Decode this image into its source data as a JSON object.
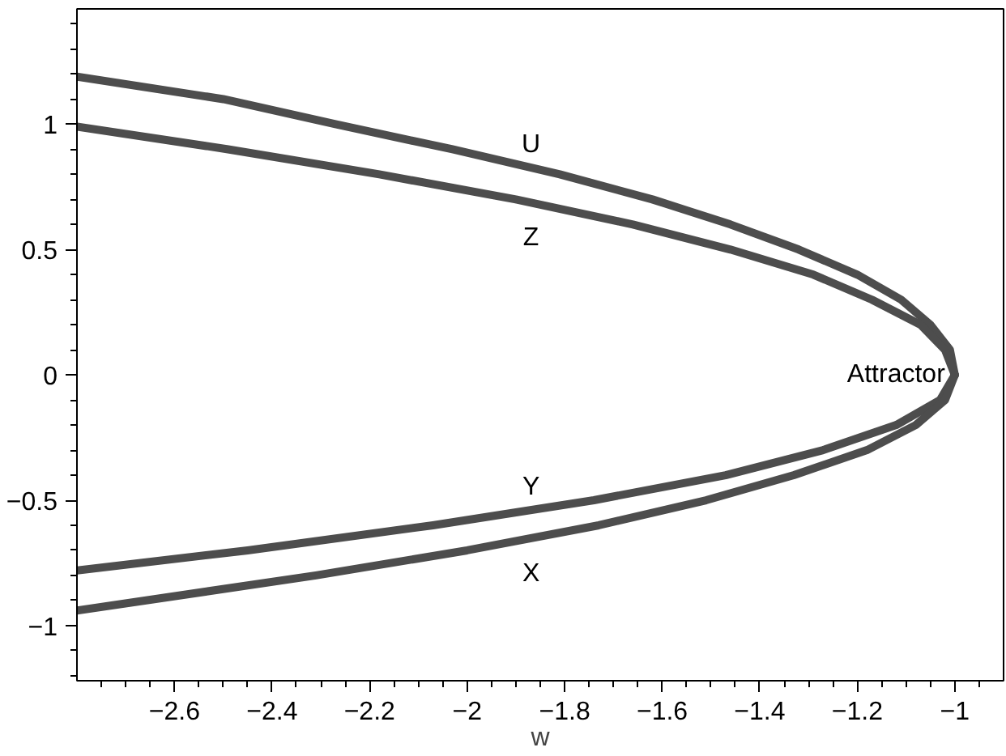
{
  "chart_data": {
    "type": "line",
    "xlabel": "w",
    "xlim": [
      -2.8,
      -0.9
    ],
    "ylim": [
      -1.22,
      1.46
    ],
    "xticks": [
      -2.6,
      -2.4,
      -2.2,
      -2,
      -1.8,
      -1.6,
      -1.4,
      -1.2,
      -1
    ],
    "yticks": [
      -1,
      -0.5,
      0,
      0.5,
      1
    ],
    "grid": false,
    "marker": "none",
    "line_style": "solid",
    "series": [
      {
        "name": "U",
        "color": "#4d4d4d",
        "x": [
          -2.8,
          -2.5,
          -2.27,
          -2.03,
          -1.81,
          -1.62,
          -1.46,
          -1.32,
          -1.2,
          -1.11,
          -1.05,
          -1.01,
          -1.0
        ],
        "values": [
          1.19,
          1.1,
          1.0,
          0.9,
          0.8,
          0.7,
          0.6,
          0.5,
          0.4,
          0.3,
          0.2,
          0.1,
          0
        ]
      },
      {
        "name": "Z",
        "color": "#4d4d4d",
        "x": [
          -2.8,
          -2.49,
          -2.18,
          -1.9,
          -1.66,
          -1.46,
          -1.29,
          -1.17,
          -1.07,
          -1.02,
          -1.0
        ],
        "values": [
          0.99,
          0.9,
          0.8,
          0.7,
          0.6,
          0.5,
          0.4,
          0.3,
          0.2,
          0.1,
          0
        ]
      },
      {
        "name": "Y",
        "color": "#4d4d4d",
        "x": [
          -2.8,
          -2.45,
          -2.07,
          -1.74,
          -1.47,
          -1.27,
          -1.12,
          -1.03,
          -1.0
        ],
        "values": [
          -0.78,
          -0.7,
          -0.6,
          -0.5,
          -0.4,
          -0.3,
          -0.2,
          -0.1,
          0
        ]
      },
      {
        "name": "X",
        "color": "#4d4d4d",
        "x": [
          -2.8,
          -2.31,
          -2.0,
          -1.73,
          -1.51,
          -1.33,
          -1.18,
          -1.08,
          -1.02,
          -1.0
        ],
        "values": [
          -0.94,
          -0.8,
          -0.7,
          -0.6,
          -0.5,
          -0.4,
          -0.3,
          -0.2,
          -0.1,
          0
        ]
      }
    ],
    "annotations": [
      {
        "text": "Attractor",
        "x": -1.0,
        "y": 0.0
      }
    ]
  }
}
